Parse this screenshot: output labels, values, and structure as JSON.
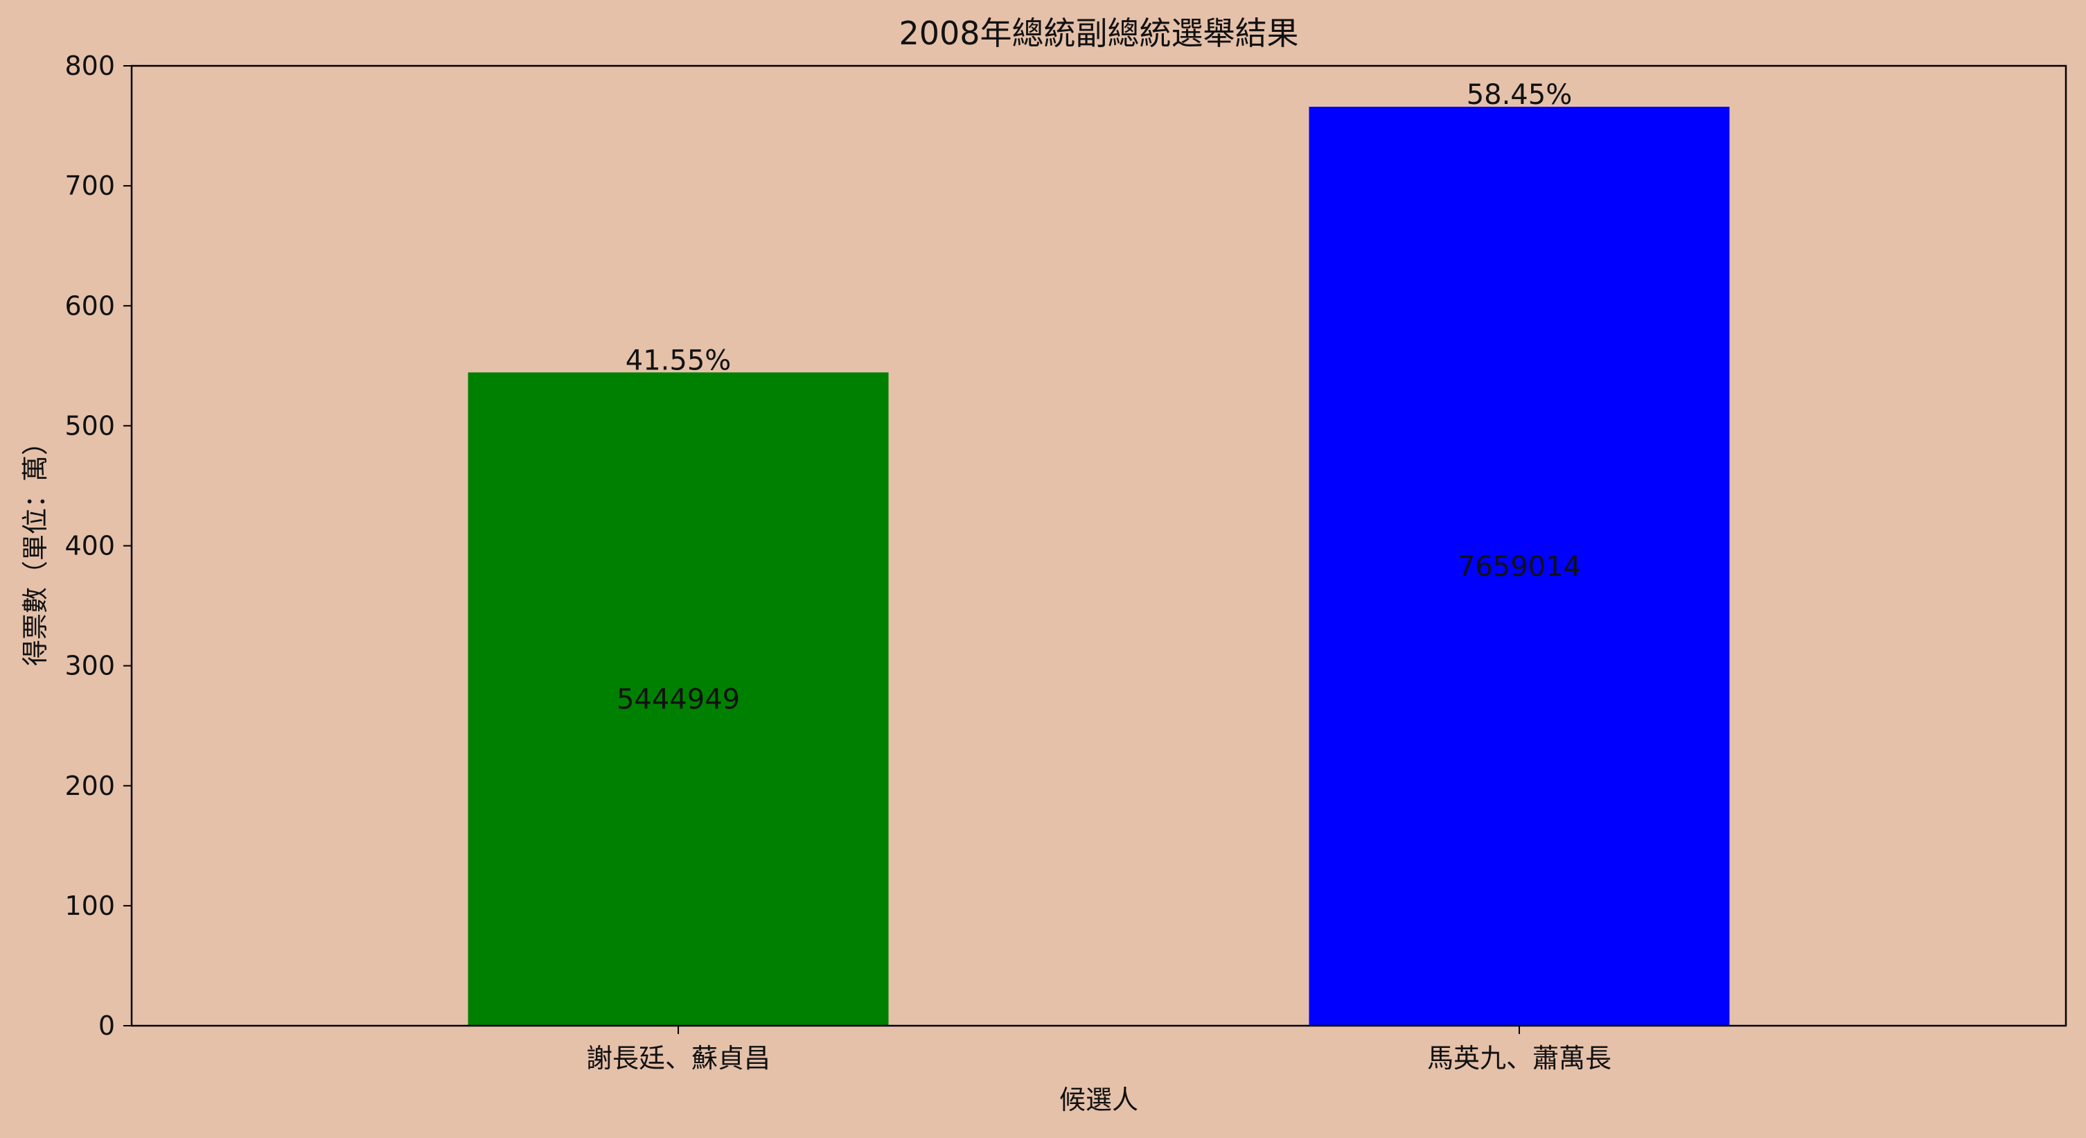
{
  "chart_data": {
    "type": "bar",
    "title": "2008年總統副總統選舉結果",
    "xlabel": "候選人",
    "ylabel": "得票數（單位：萬）",
    "categories": [
      "謝長廷、蘇貞昌",
      "馬英九、蕭萬長"
    ],
    "values": [
      544.4949,
      765.9014
    ],
    "vote_labels": [
      "5444949",
      "7659014"
    ],
    "percent_labels": [
      "41.55%",
      "58.45%"
    ],
    "bar_colors": [
      "#008000",
      "#0000ff"
    ],
    "ylim": [
      0,
      800
    ],
    "yticks": [
      0,
      100,
      200,
      300,
      400,
      500,
      600,
      700,
      800
    ],
    "grid": false,
    "legend": "none"
  },
  "colors": {
    "background": "#e5c1aa",
    "axis": "#000000",
    "text": "#111111"
  }
}
